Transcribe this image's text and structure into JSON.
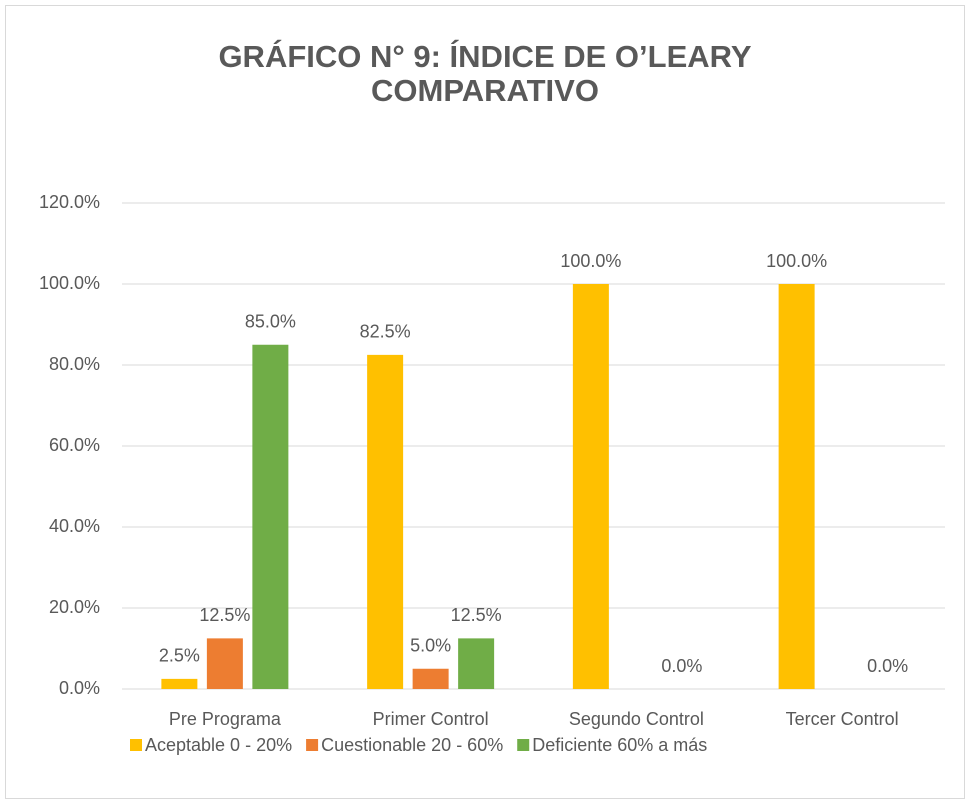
{
  "chart_data": {
    "type": "bar",
    "title": "GRÁFICO N° 9: ÍNDICE DE O’LEARY COMPARATIVO",
    "categories": [
      "Pre Programa",
      "Primer Control",
      "Segundo Control",
      "Tercer Control"
    ],
    "series": [
      {
        "name": "Aceptable 0 - 20%",
        "color": "#FFC000",
        "values": [
          2.5,
          82.5,
          100,
          100
        ],
        "value_labels": [
          "2.5%",
          "82.5%",
          "100.0%",
          "100.0%"
        ]
      },
      {
        "name": "Cuestionable 20 - 60%",
        "color": "#ED7D31",
        "values": [
          12.5,
          5.0,
          null,
          null
        ],
        "value_labels": [
          "12.5%",
          "5.0%",
          null,
          null
        ]
      },
      {
        "name": "Deficiente 60% a más",
        "color": "#70AD47",
        "values": [
          85,
          12.5,
          0,
          0
        ],
        "value_labels": [
          "85.0%",
          "12.5%",
          "0.0%",
          "0.0%"
        ]
      }
    ],
    "ylim": [
      0,
      120
    ],
    "yticks": [
      {
        "value": 0,
        "label": "0.0%"
      },
      {
        "value": 20,
        "label": "20.0%"
      },
      {
        "value": 40,
        "label": "40.0%"
      },
      {
        "value": 60,
        "label": "60.0%"
      },
      {
        "value": 80,
        "label": "80.0%"
      },
      {
        "value": 100,
        "label": "100.0%"
      },
      {
        "value": 120,
        "label": "120.0%"
      }
    ],
    "grid": true,
    "legend": "bottom"
  }
}
